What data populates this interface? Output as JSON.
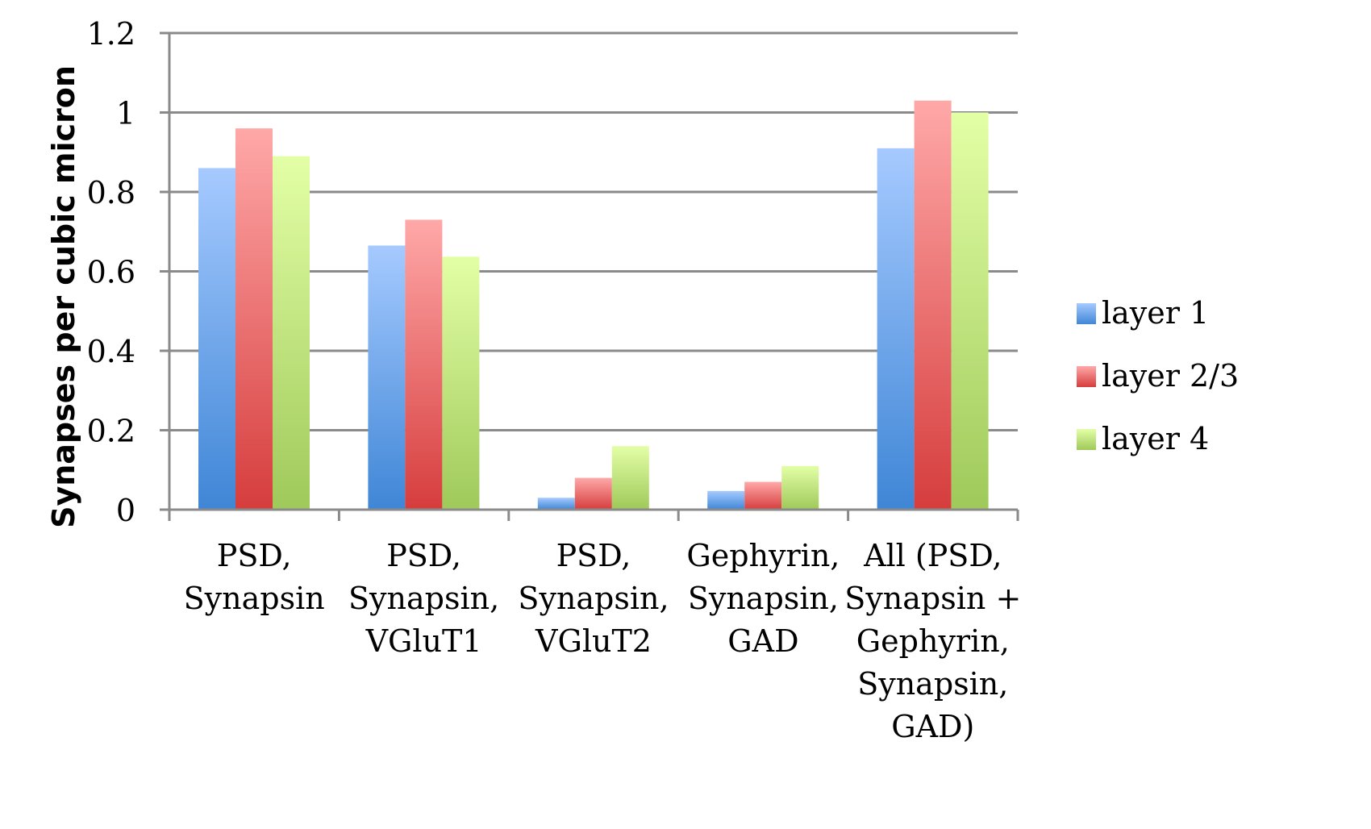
{
  "chart_data": {
    "type": "bar",
    "title": "",
    "xlabel": "",
    "ylabel": "Synapses per cubic micron",
    "ylim": [
      0,
      1.2
    ],
    "yticks": [
      "0",
      "0.2",
      "0.4",
      "0.6",
      "0.8",
      "1",
      "1.2"
    ],
    "grid": true,
    "legend_position": "right",
    "categories": [
      [
        "PSD,",
        "Synapsin"
      ],
      [
        "PSD,",
        "Synapsin,",
        "VGluT1"
      ],
      [
        "PSD,",
        "Synapsin,",
        "VGluT2"
      ],
      [
        "Gephyrin,",
        "Synapsin,",
        "GAD"
      ],
      [
        "All (PSD,",
        "Synapsin +",
        "Gephyrin,",
        "Synapsin,",
        "GAD)"
      ]
    ],
    "series": [
      {
        "name": "layer 1",
        "color_top": "#a6caff",
        "color_bottom": "#3f86d6",
        "values": [
          0.86,
          0.665,
          0.03,
          0.047,
          0.91
        ]
      },
      {
        "name": "layer 2/3",
        "color_top": "#ffa8a8",
        "color_bottom": "#d63d3d",
        "values": [
          0.96,
          0.73,
          0.08,
          0.07,
          1.03
        ]
      },
      {
        "name": "layer 4",
        "color_top": "#e3ffa6",
        "color_bottom": "#9fc95a",
        "values": [
          0.89,
          0.637,
          0.16,
          0.11,
          1.0
        ]
      }
    ]
  }
}
